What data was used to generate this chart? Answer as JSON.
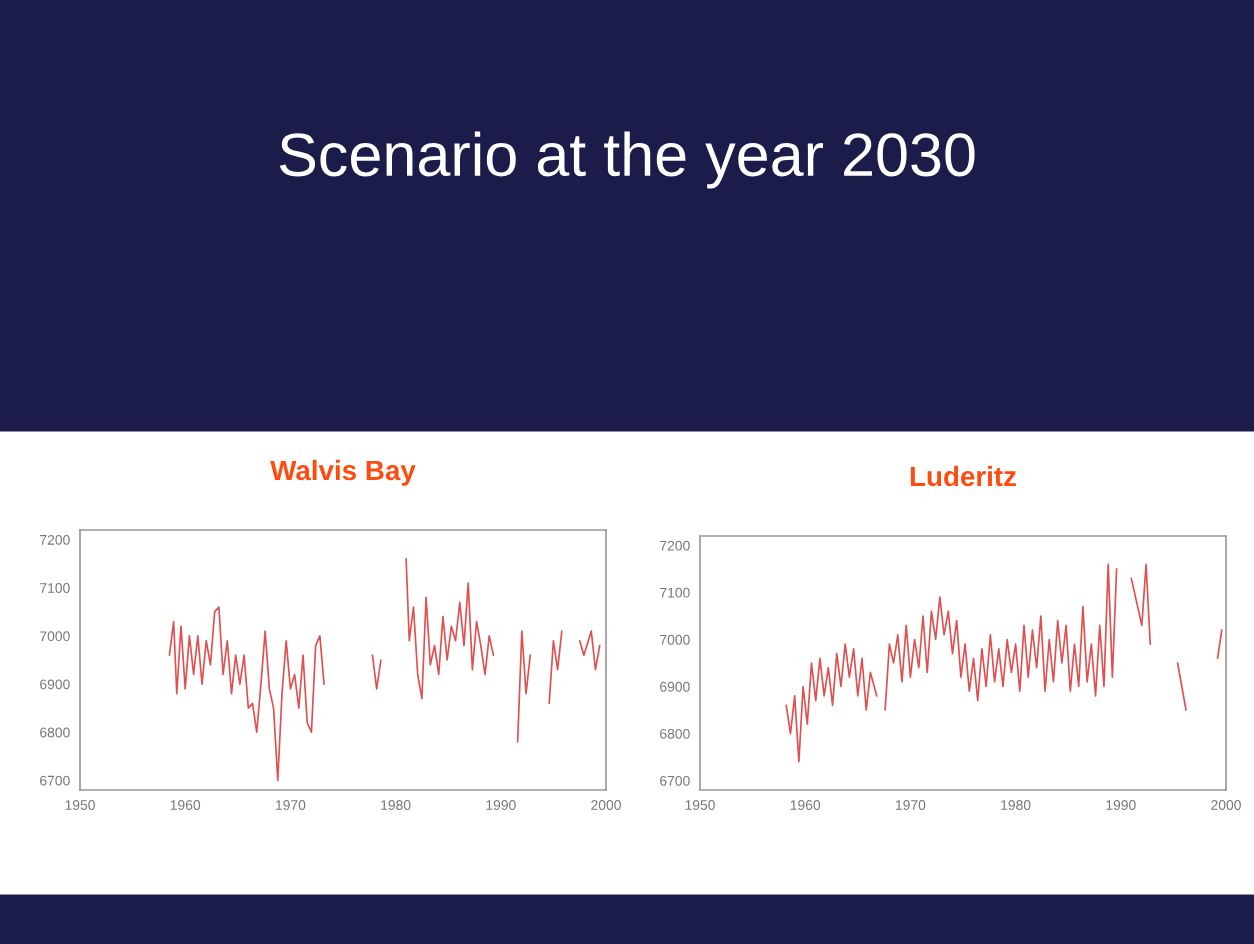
{
  "chart_data": [
    {
      "type": "line",
      "title": "Walvis Bay",
      "annotations": [
        "Scenario at the year 2030"
      ],
      "xlim": [
        1950,
        2000
      ],
      "xticks": [
        1950,
        1960,
        1970,
        1980,
        1990,
        2000
      ],
      "ylim": [
        6680,
        7220
      ],
      "yticks": [
        6700,
        6800,
        6900,
        7000,
        7100,
        7200
      ],
      "grid": false,
      "tick_labels": "xy",
      "series": [
        {
          "color": "#e05050",
          "x": [
            1958.5,
            1958.9,
            1959.2,
            1959.6,
            1960.0,
            1960.4,
            1960.8,
            1961.2,
            1961.6,
            1962.0,
            1962.4,
            1962.8,
            1963.2,
            1963.6,
            1964.0,
            1964.4,
            1964.8,
            1965.2,
            1965.6,
            1966.0,
            1966.4,
            1966.8,
            1967.2,
            1967.6,
            1968.0,
            1968.4,
            1968.8,
            1969.2,
            1969.6,
            1970.0,
            1970.4,
            1970.8,
            1971.2,
            1971.6,
            1972.0,
            1972.4,
            1972.8,
            1973.2,
            1975.0,
            1977.8,
            1978.2,
            1978.6,
            1980.0,
            1981.0,
            1981.3,
            1981.7,
            1982.1,
            1982.5,
            1982.9,
            1983.3,
            1983.7,
            1984.1,
            1984.5,
            1984.9,
            1985.3,
            1985.7,
            1986.1,
            1986.5,
            1986.9,
            1987.3,
            1987.7,
            1988.1,
            1988.5,
            1988.9,
            1989.3,
            1990.5,
            1991.6,
            1992.0,
            1992.4,
            1992.8,
            1993.5,
            1994.6,
            1995.0,
            1995.4,
            1995.8,
            1996.6,
            1997.5,
            1997.9,
            1998.6,
            1999.0,
            1999.4
          ],
          "values": [
            6960,
            7030,
            6880,
            7020,
            6890,
            7000,
            6920,
            7000,
            6900,
            6990,
            6940,
            7050,
            7060,
            6920,
            6990,
            6880,
            6960,
            6900,
            6960,
            6850,
            6860,
            6800,
            6900,
            7010,
            6890,
            6850,
            6700,
            6880,
            6990,
            6890,
            6920,
            6850,
            6960,
            6820,
            6800,
            6980,
            7000,
            6900,
            null,
            6960,
            6890,
            6950,
            null,
            7160,
            6990,
            7060,
            6920,
            6870,
            7080,
            6940,
            6980,
            6920,
            7040,
            6950,
            7020,
            6990,
            7070,
            6980,
            7110,
            6930,
            7030,
            6980,
            6920,
            7000,
            6960,
            null,
            6780,
            7010,
            6880,
            6960,
            null,
            6860,
            6990,
            6930,
            7010,
            null,
            6990,
            6960,
            7010,
            6930,
            6980
          ]
        }
      ]
    },
    {
      "type": "line",
      "title": "Luderitz",
      "xlim": [
        1950,
        2000
      ],
      "xticks": [
        1950,
        1960,
        1970,
        1980,
        1990,
        2000
      ],
      "ylim": [
        6680,
        7220
      ],
      "yticks": [
        6700,
        6800,
        6900,
        7000,
        7100,
        7200
      ],
      "grid": false,
      "tick_labels": "xy",
      "series": [
        {
          "color": "#e05050",
          "x": [
            1958.2,
            1958.6,
            1959.0,
            1959.4,
            1959.8,
            1960.2,
            1960.6,
            1961.0,
            1961.4,
            1961.8,
            1962.2,
            1962.6,
            1963.0,
            1963.4,
            1963.8,
            1964.2,
            1964.6,
            1965.0,
            1965.4,
            1965.8,
            1966.2,
            1966.8,
            1967.2,
            1967.6,
            1968.0,
            1968.4,
            1968.8,
            1969.2,
            1969.6,
            1970.0,
            1970.4,
            1970.8,
            1971.2,
            1971.6,
            1972.0,
            1972.4,
            1972.8,
            1973.2,
            1973.6,
            1974.0,
            1974.4,
            1974.8,
            1975.2,
            1975.6,
            1976.0,
            1976.4,
            1976.8,
            1977.2,
            1977.6,
            1978.0,
            1978.4,
            1978.8,
            1979.2,
            1979.6,
            1980.0,
            1980.4,
            1980.8,
            1981.2,
            1981.6,
            1982.0,
            1982.4,
            1982.8,
            1983.2,
            1983.6,
            1984.0,
            1984.4,
            1984.8,
            1985.2,
            1985.6,
            1986.0,
            1986.4,
            1986.8,
            1987.2,
            1987.6,
            1988.0,
            1988.4,
            1988.8,
            1989.2,
            1989.6,
            1990.0,
            1991.0,
            1992.0,
            1992.4,
            1992.8,
            1994.0,
            1995.4,
            1995.8,
            1996.2,
            1997.0,
            1999.2,
            1999.6
          ],
          "values": [
            6860,
            6800,
            6880,
            6740,
            6900,
            6820,
            6950,
            6870,
            6960,
            6880,
            6940,
            6860,
            6970,
            6900,
            6990,
            6920,
            6980,
            6880,
            6960,
            6850,
            6930,
            6880,
            null,
            6850,
            6990,
            6950,
            7010,
            6910,
            7030,
            6920,
            7000,
            6940,
            7050,
            6930,
            7060,
            7000,
            7090,
            7010,
            7060,
            6970,
            7040,
            6920,
            6990,
            6890,
            6960,
            6870,
            6980,
            6900,
            7010,
            6910,
            6980,
            6900,
            7000,
            6930,
            6990,
            6890,
            7030,
            6920,
            7020,
            6940,
            7050,
            6890,
            7000,
            6910,
            7040,
            6950,
            7030,
            6890,
            6990,
            6900,
            7070,
            6910,
            6990,
            6880,
            7030,
            6900,
            7160,
            6920,
            7150,
            null,
            7130,
            7030,
            7160,
            6990,
            null,
            6950,
            6900,
            6850,
            null,
            6960,
            7020
          ]
        }
      ]
    }
  ]
}
